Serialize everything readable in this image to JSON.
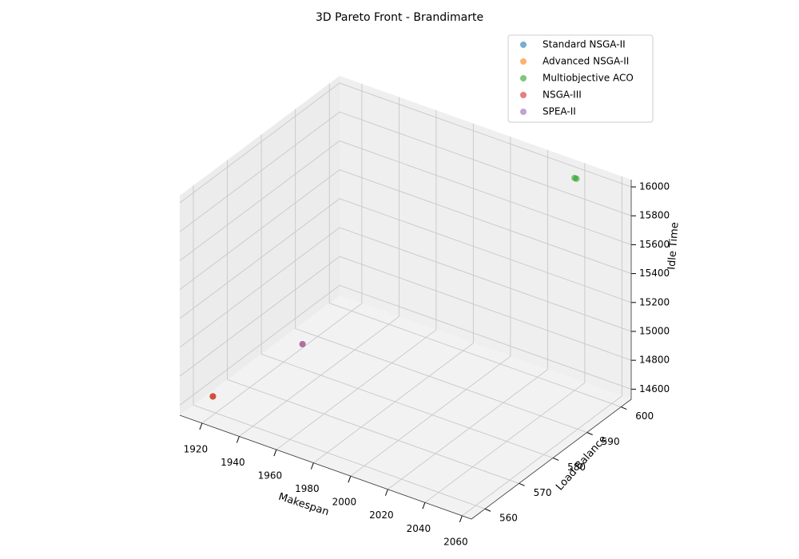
{
  "chart_data": {
    "type": "scatter3d",
    "title": "3D Pareto Front - Brandimarte",
    "x_label": "Makespan",
    "y_label": "Load Balance",
    "z_label": "Idle Time",
    "xlim": [
      1908,
      2065
    ],
    "ylim": [
      556,
      603
    ],
    "zlim": [
      14530,
      16050
    ],
    "xticks": [
      1920,
      1940,
      1960,
      1980,
      2000,
      2020,
      2040,
      2060
    ],
    "yticks": [
      560,
      570,
      580,
      590,
      600
    ],
    "zticks": [
      14600,
      14800,
      15000,
      15200,
      15400,
      15600,
      15800,
      16000
    ],
    "grid": true,
    "legend": "upper right",
    "series": [
      {
        "name": "Standard NSGA-II",
        "color": "#1f77b4",
        "x": [
          1913
        ],
        "y": [
          563
        ],
        "z": [
          14560
        ]
      },
      {
        "name": "Advanced NSGA-II",
        "color": "#ff7f0e",
        "x": [
          1913
        ],
        "y": [
          563
        ],
        "z": [
          14560
        ]
      },
      {
        "name": "Multiobjective ACO",
        "color": "#2ca02c",
        "x": [
          2040,
          2041
        ],
        "y": [
          600,
          600
        ],
        "z": [
          16000,
          16000
        ]
      },
      {
        "name": "NSGA-III",
        "color": "#d62728",
        "x": [
          1913,
          1921
        ],
        "y": [
          563,
          585
        ],
        "z": [
          14560,
          14570
        ]
      },
      {
        "name": "SPEA-II",
        "color": "#9467bd",
        "x": [
          1921
        ],
        "y": [
          585
        ],
        "z": [
          14570
        ]
      }
    ]
  }
}
